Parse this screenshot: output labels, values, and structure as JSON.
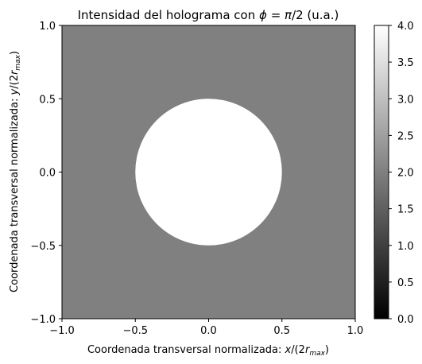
{
  "chart_data": {
    "type": "heatmap",
    "title": "Intensidad del holograma con ϕ = π/2 (u.a.)",
    "xlabel": "Coordenada transversal normalizada: x/(2r_max)",
    "ylabel": "Coordenada transversal normalizada: y/(2r_max)",
    "xlim": [
      -1.0,
      1.0
    ],
    "ylim": [
      -1.0,
      1.0
    ],
    "xticks": [
      "−1.0",
      "−0.5",
      "0.0",
      "0.5",
      "1.0"
    ],
    "yticks": [
      "−1.0",
      "−0.5",
      "0.0",
      "0.5",
      "1.0"
    ],
    "grid": false,
    "colormap": "gray",
    "colorbar": {
      "range": [
        0.0,
        4.0
      ],
      "ticks": [
        "0.0",
        "0.5",
        "1.0",
        "1.5",
        "2.0",
        "2.5",
        "3.0",
        "3.5",
        "4.0"
      ]
    },
    "regions": [
      {
        "shape": "background",
        "value": 2.0,
        "color": "#808080"
      },
      {
        "shape": "disk",
        "center": [
          0.0,
          0.0
        ],
        "radius": 0.5,
        "value": 4.0,
        "color": "#ffffff"
      }
    ]
  }
}
